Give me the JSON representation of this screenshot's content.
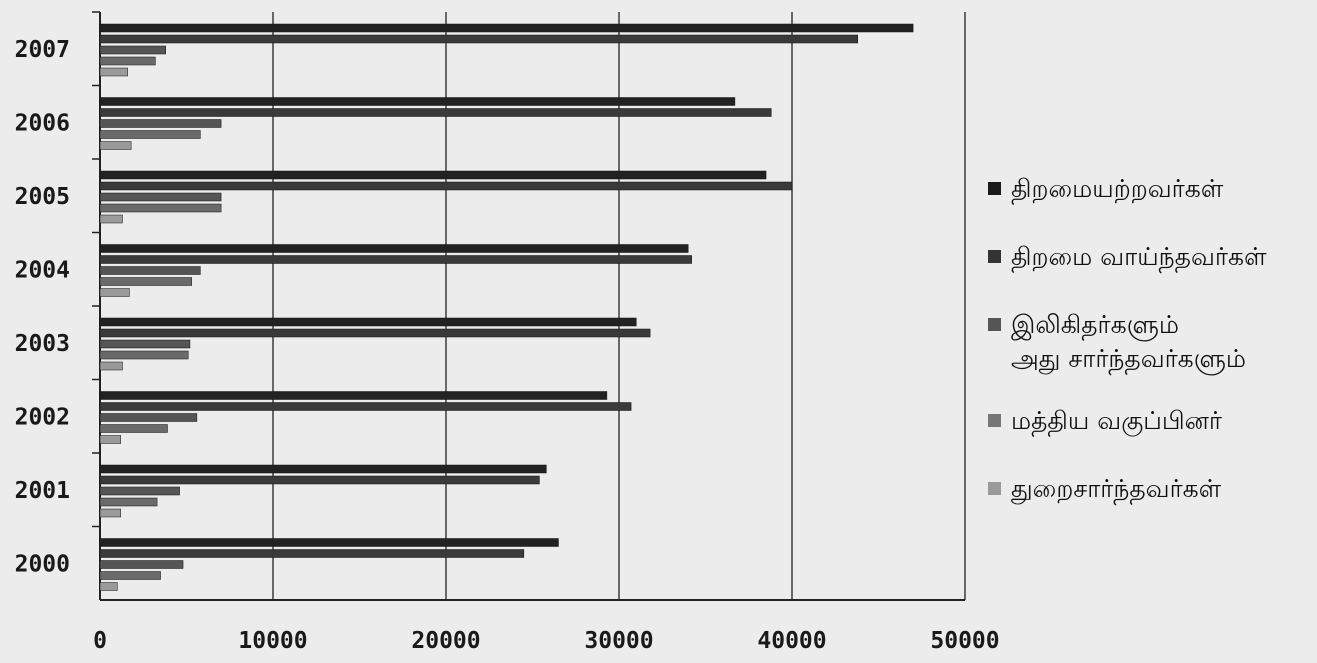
{
  "chart_data": {
    "type": "bar",
    "orientation": "horizontal",
    "categories": [
      "2000",
      "2001",
      "2002",
      "2003",
      "2004",
      "2005",
      "2006",
      "2007"
    ],
    "series": [
      {
        "name": "திறமையற்றவர்கள்",
        "color": "#222222",
        "values": [
          26500,
          25800,
          29300,
          31000,
          34000,
          38500,
          36700,
          47000
        ]
      },
      {
        "name": "திறமை வாய்ந்தவர்கள்",
        "color": "#3a3a3a",
        "values": [
          24500,
          25400,
          30700,
          31800,
          34200,
          40000,
          38800,
          43800
        ]
      },
      {
        "name": "இலிகிதர்களும் அது சார்ந்தவர்களும்",
        "color": "#555555",
        "values": [
          4800,
          4600,
          5600,
          5200,
          5800,
          7000,
          7000,
          3800
        ]
      },
      {
        "name": "மத்திய வகுப்பினர்",
        "color": "#6a6a6a",
        "values": [
          3500,
          3300,
          3900,
          5100,
          5300,
          7000,
          5800,
          3200
        ]
      },
      {
        "name": "துறைசார்ந்தவர்கள்",
        "color": "#9a9a9a",
        "values": [
          1000,
          1200,
          1200,
          1300,
          1700,
          1300,
          1800,
          1600
        ]
      }
    ],
    "xticks": [
      "0",
      "10000",
      "20000",
      "30000",
      "40000",
      "50000"
    ],
    "xlim": [
      0,
      50000
    ],
    "title": "",
    "xlabel": "",
    "ylabel": "",
    "grid": "vertical",
    "legend_position": "right"
  },
  "legend": {
    "items": [
      {
        "label": "திறமையற்றவர்கள்",
        "color": "#1a1a1a"
      },
      {
        "label": "திறமை வாய்ந்தவர்கள்",
        "color": "#333333"
      },
      {
        "label_line1": "இலிகிதர்களும்",
        "label_line2": "அது சார்ந்தவர்களும்",
        "color": "#555555"
      },
      {
        "label": "மத்திய வகுப்பினர்",
        "color": "#777777"
      },
      {
        "label": "துறைசார்ந்தவர்கள்",
        "color": "#9a9a9a"
      }
    ]
  }
}
